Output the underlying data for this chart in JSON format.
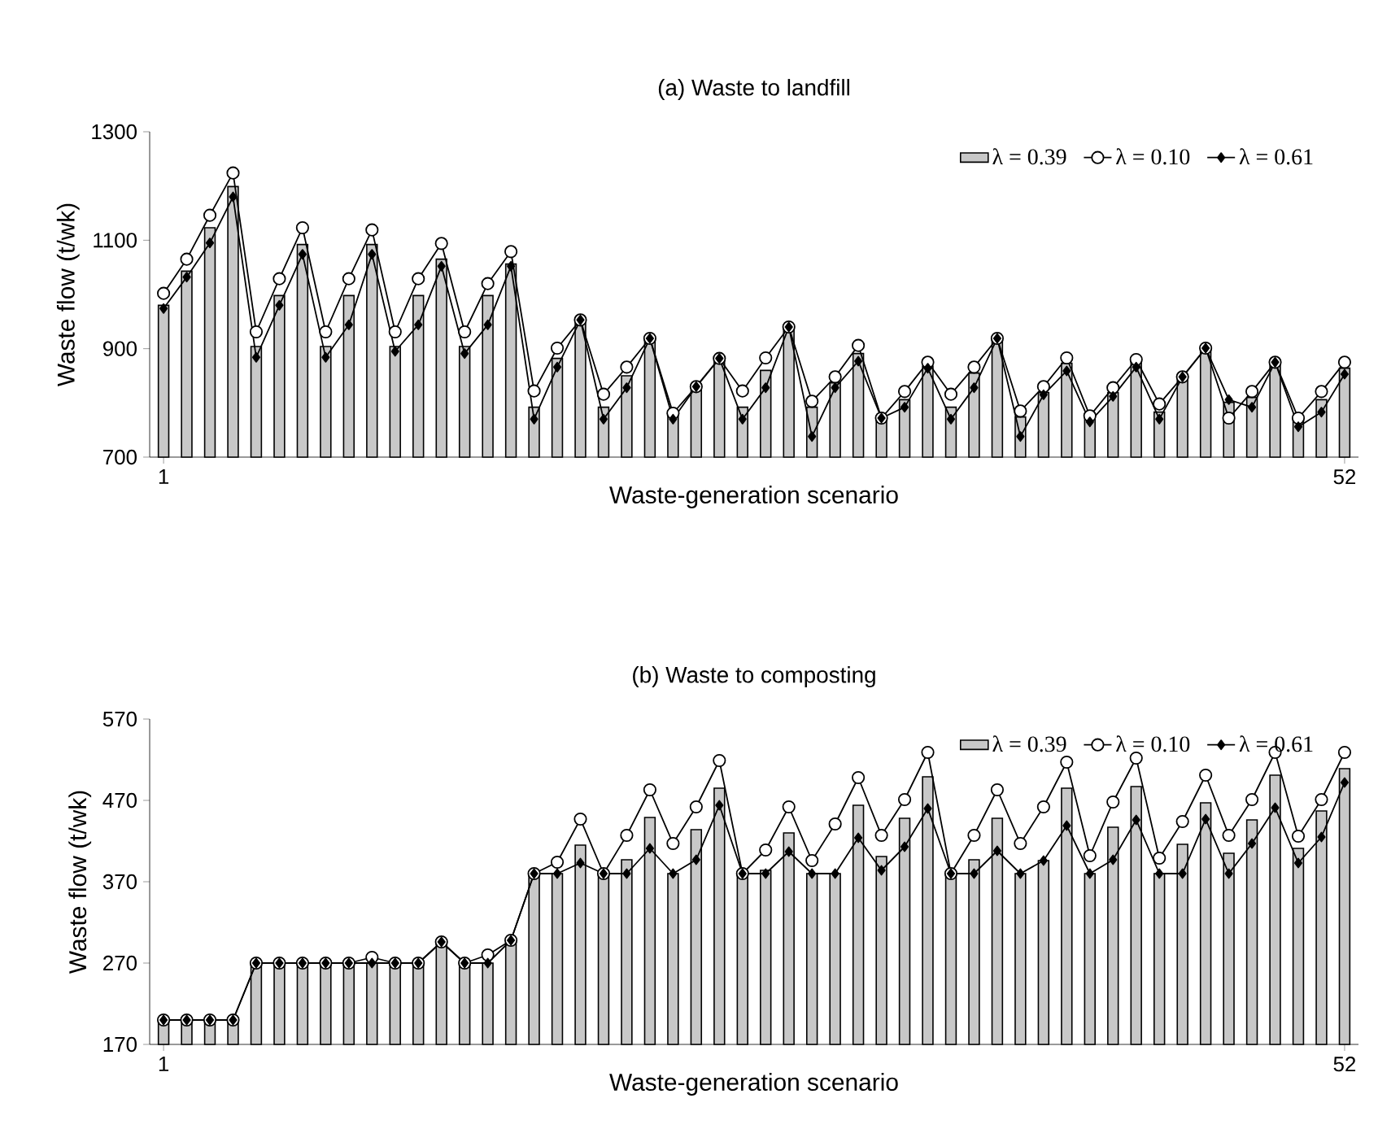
{
  "chart_data": [
    {
      "type": "bar",
      "title": "(a) Waste to landfill",
      "xlabel": "Waste-generation scenario",
      "ylabel": "Waste flow (t/wk)",
      "categories": [
        "1",
        null,
        null,
        null,
        null,
        null,
        null,
        null,
        null,
        null,
        null,
        null,
        null,
        null,
        null,
        null,
        null,
        null,
        null,
        null,
        null,
        null,
        null,
        null,
        null,
        null,
        null,
        null,
        null,
        null,
        null,
        null,
        null,
        null,
        null,
        null,
        null,
        null,
        null,
        null,
        null,
        null,
        null,
        null,
        null,
        null,
        null,
        null,
        null,
        null,
        null,
        "52"
      ],
      "ylim": [
        700,
        1300
      ],
      "yticks": [
        700,
        900,
        1100,
        1300
      ],
      "legend": "top right",
      "series": [
        {
          "name": "λ = 0.39",
          "color": "#c8c8c8",
          "values": [
            980,
            1043,
            1123,
            1199,
            904,
            998,
            1092,
            904,
            998,
            1092,
            904,
            998,
            1065,
            904,
            998,
            1056,
            792,
            882,
            953,
            792,
            850,
            919,
            781,
            830,
            882,
            792,
            860,
            940,
            792,
            837,
            891,
            772,
            806,
            868,
            792,
            855,
            919,
            774,
            819,
            873,
            774,
            819,
            877,
            783,
            848,
            901,
            801,
            810,
            875,
            770,
            806,
            864
          ]
        },
        {
          "name": "λ = 0.10",
          "type": "line",
          "marker": "circle",
          "color": "#000000",
          "values": [
            1002,
            1065,
            1146,
            1224,
            931,
            1029,
            1123,
            931,
            1029,
            1119,
            931,
            1029,
            1094,
            931,
            1020,
            1079,
            822,
            901,
            953,
            816,
            866,
            919,
            781,
            830,
            882,
            822,
            883,
            940,
            803,
            848,
            906,
            772,
            821,
            875,
            816,
            866,
            919,
            785,
            830,
            883,
            776,
            828,
            880,
            798,
            848,
            901,
            772,
            821,
            875,
            772,
            821,
            875
          ]
        },
        {
          "name": "λ = 0.61",
          "type": "line",
          "marker": "diamond",
          "color": "#000000",
          "values": [
            974,
            1032,
            1095,
            1180,
            884,
            980,
            1074,
            884,
            944,
            1074,
            895,
            944,
            1052,
            891,
            944,
            1052,
            770,
            866,
            953,
            770,
            828,
            919,
            770,
            830,
            882,
            770,
            828,
            940,
            738,
            828,
            877,
            772,
            792,
            864,
            770,
            828,
            919,
            738,
            815,
            859,
            765,
            812,
            866,
            770,
            848,
            901,
            806,
            792,
            875,
            756,
            783,
            853
          ]
        }
      ]
    },
    {
      "type": "bar",
      "title": "(b) Waste to composting",
      "xlabel": "Waste-generation scenario",
      "ylabel": "Waste flow (t/wk)",
      "categories": [
        "1",
        null,
        null,
        null,
        null,
        null,
        null,
        null,
        null,
        null,
        null,
        null,
        null,
        null,
        null,
        null,
        null,
        null,
        null,
        null,
        null,
        null,
        null,
        null,
        null,
        null,
        null,
        null,
        null,
        null,
        null,
        null,
        null,
        null,
        null,
        null,
        null,
        null,
        null,
        null,
        null,
        null,
        null,
        null,
        null,
        null,
        null,
        null,
        null,
        null,
        null,
        "52"
      ],
      "ylim": [
        170,
        570
      ],
      "yticks": [
        170,
        270,
        370,
        470,
        570
      ],
      "legend": "top right",
      "series": [
        {
          "name": "λ = 0.39",
          "color": "#c8c8c8",
          "values": [
            200,
            200,
            200,
            200,
            270,
            270,
            270,
            270,
            270,
            270,
            270,
            270,
            296,
            270,
            270,
            298,
            380,
            380,
            415,
            380,
            397,
            449,
            380,
            434,
            485,
            380,
            384,
            430,
            380,
            380,
            464,
            401,
            448,
            499,
            380,
            397,
            448,
            380,
            396,
            485,
            380,
            437,
            487,
            380,
            416,
            467,
            405,
            446,
            501,
            411,
            457,
            509
          ]
        },
        {
          "name": "λ = 0.10",
          "type": "line",
          "marker": "circle",
          "color": "#000000",
          "values": [
            200,
            200,
            200,
            200,
            270,
            270,
            270,
            270,
            270,
            277,
            270,
            270,
            296,
            270,
            280,
            298,
            380,
            394,
            447,
            380,
            427,
            483,
            417,
            462,
            519,
            380,
            409,
            462,
            396,
            441,
            498,
            427,
            471,
            529,
            380,
            427,
            483,
            417,
            462,
            517,
            402,
            468,
            522,
            399,
            444,
            501,
            427,
            471,
            529,
            426,
            471,
            529
          ]
        },
        {
          "name": "λ = 0.61",
          "type": "line",
          "marker": "diamond",
          "color": "#000000",
          "values": [
            200,
            200,
            200,
            200,
            270,
            270,
            270,
            270,
            270,
            270,
            270,
            270,
            296,
            270,
            270,
            298,
            380,
            380,
            393,
            380,
            380,
            411,
            380,
            397,
            464,
            380,
            380,
            407,
            380,
            380,
            424,
            384,
            413,
            460,
            380,
            380,
            408,
            380,
            396,
            439,
            380,
            397,
            446,
            380,
            380,
            447,
            380,
            417,
            461,
            393,
            425,
            492
          ]
        }
      ]
    }
  ]
}
